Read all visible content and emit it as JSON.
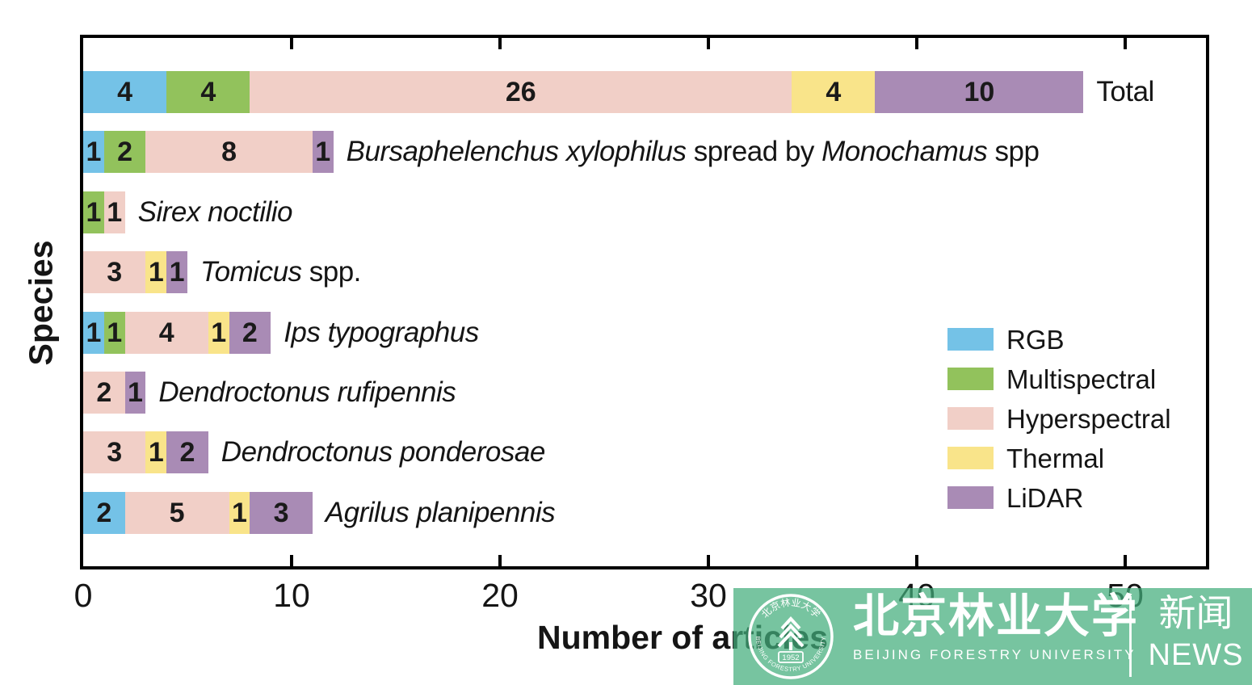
{
  "chart_data": {
    "type": "bar",
    "orientation": "horizontal",
    "stacked": true,
    "xlabel": "Number of articles",
    "ylabel": "Species",
    "xlim": [
      0,
      54
    ],
    "xticks": [
      0,
      10,
      20,
      30,
      40,
      50
    ],
    "grid": false,
    "legend_position": "inside-right",
    "categories": [
      "Total",
      "Bursaphelenchus xylophilus spread by Monochamus spp",
      "Sirex noctilio",
      "Tomicus spp.",
      "Ips typographus",
      "Dendroctonus rufipennis",
      "Dendroctonus ponderosae",
      "Agrilus planipennis"
    ],
    "category_label_parts": [
      [
        {
          "text": "Total",
          "italic": false
        }
      ],
      [
        {
          "text": "Bursaphelenchus xylophilus",
          "italic": true
        },
        {
          "text": " spread by ",
          "italic": false
        },
        {
          "text": "Monochamus",
          "italic": true
        },
        {
          "text": " spp",
          "italic": false
        }
      ],
      [
        {
          "text": "Sirex noctilio",
          "italic": true
        }
      ],
      [
        {
          "text": "Tomicus",
          "italic": true
        },
        {
          "text": " spp.",
          "italic": false
        }
      ],
      [
        {
          "text": "Ips typographus",
          "italic": true
        }
      ],
      [
        {
          "text": "Dendroctonus rufipennis",
          "italic": true
        }
      ],
      [
        {
          "text": "Dendroctonus ponderosae",
          "italic": true
        }
      ],
      [
        {
          "text": "Agrilus planipennis",
          "italic": true
        }
      ]
    ],
    "series": [
      {
        "name": "RGB",
        "color": "#74C2E7",
        "values": [
          4,
          1,
          0,
          0,
          1,
          0,
          0,
          2
        ]
      },
      {
        "name": "Multispectral",
        "color": "#92C25C",
        "values": [
          4,
          2,
          1,
          0,
          1,
          0,
          0,
          0
        ]
      },
      {
        "name": "Hyperspectral",
        "color": "#F1CFC7",
        "values": [
          26,
          8,
          1,
          3,
          4,
          2,
          3,
          5
        ]
      },
      {
        "name": "Thermal",
        "color": "#F9E48A",
        "values": [
          4,
          0,
          0,
          1,
          1,
          0,
          1,
          1
        ]
      },
      {
        "name": "LiDAR",
        "color": "#A98BB5",
        "values": [
          10,
          1,
          0,
          1,
          2,
          1,
          2,
          3
        ]
      }
    ]
  },
  "watermark": {
    "university_cn": "北京林业大学",
    "university_en": "BEIJING FORESTRY UNIVERSITY",
    "news_cn": "新闻",
    "news_en": "NEWS",
    "seal_top_cn": "北京林业大学",
    "seal_bottom_en": "BEIJING FORESTRY UNIVERSITY",
    "seal_year": "1952",
    "banner_color": "rgba(66,173,123,0.72)"
  },
  "colors": {
    "axis": "#000000",
    "text": "#151515",
    "number_labels": "#1a1a1a"
  }
}
